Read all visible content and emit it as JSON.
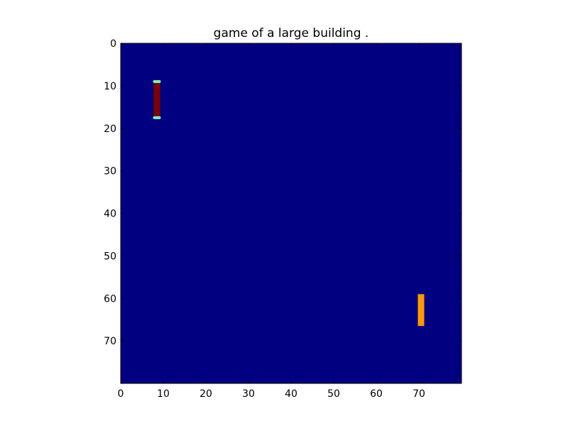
{
  "title": "game of a large building .",
  "grid": {
    "width": 80,
    "height": 80,
    "background_color": "#000080"
  },
  "axes": {
    "x_ticks": [
      0,
      10,
      20,
      30,
      40,
      50,
      60,
      70
    ],
    "y_ticks": [
      0,
      10,
      20,
      30,
      40,
      50,
      60,
      70
    ],
    "x_range": [
      0,
      80
    ],
    "y_range": [
      0,
      80
    ],
    "y_inverted": true
  },
  "paddles": [
    {
      "name": "left-paddle",
      "x": 8.5,
      "y_top": 9,
      "y_bottom": 17.5,
      "width_cells": 1.5,
      "fill": "#800000",
      "cap_color": "#7fffb0"
    },
    {
      "name": "right-paddle",
      "x": 70.5,
      "y_top": 59,
      "y_bottom": 66.5,
      "width_cells": 1.5,
      "fill": "#ff9900",
      "cap_color": ""
    }
  ]
}
